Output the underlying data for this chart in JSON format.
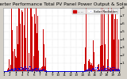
{
  "title": "Solar PV/Inverter Performance Total PV Panel Power Output & Solar Radiation",
  "bg_color": "#d4d0c8",
  "plot_bg": "#ffffff",
  "bar_color": "#cc0000",
  "dot_color": "#0000dd",
  "grid_color": "#bbbbbb",
  "ylim": [
    0,
    800
  ],
  "yticks": [
    100,
    200,
    300,
    400,
    500,
    600,
    700,
    800
  ],
  "ytick_labels": [
    "1",
    "2",
    "3",
    "4",
    "5",
    "6",
    "7",
    "8"
  ],
  "num_points": 365,
  "title_fontsize": 4.2,
  "tick_fontsize": 3.2,
  "legend_pv_label": "-- --",
  "legend_solar_label": "Solar Radiation"
}
